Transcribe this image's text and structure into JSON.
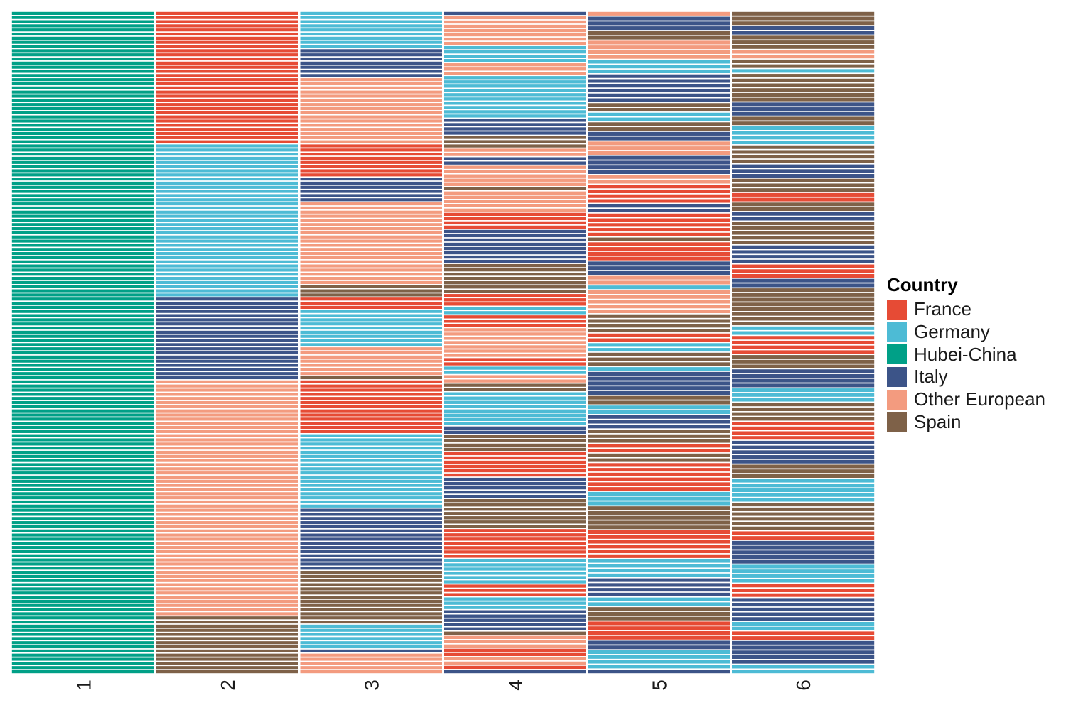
{
  "chart_data": {
    "type": "heatmap",
    "legend_title": "Country",
    "legend_position": "right",
    "grid": false,
    "categories": [
      "France",
      "Germany",
      "Hubei-China",
      "Italy",
      "Other European",
      "Spain"
    ],
    "colors": {
      "France": "#E64B35",
      "Germany": "#4DBBD5",
      "Hubei-China": "#00A087",
      "Italy": "#3C5488",
      "Other European": "#F39B7F",
      "Spain": "#7E6148"
    },
    "x": [
      "1",
      "2",
      "3",
      "4",
      "5",
      "6"
    ],
    "rows_per_column": 160,
    "columns": [
      {
        "label": "1",
        "segments": [
          [
            "Hubei-China",
            160
          ]
        ]
      },
      {
        "label": "2",
        "segments": [
          [
            "France",
            32
          ],
          [
            "Germany",
            37
          ],
          [
            "Italy",
            20
          ],
          [
            "Other European",
            57
          ],
          [
            "Spain",
            14
          ]
        ]
      },
      {
        "label": "3",
        "segments": [
          [
            "Germany",
            9
          ],
          [
            "Italy",
            7
          ],
          [
            "Other European",
            16
          ],
          [
            "France",
            8
          ],
          [
            "Italy",
            6
          ],
          [
            "Other European",
            20
          ],
          [
            "Spain",
            3
          ],
          [
            "France",
            3
          ],
          [
            "Germany",
            9
          ],
          [
            "Other European",
            7
          ],
          [
            "Spain",
            1
          ],
          [
            "France",
            13
          ],
          [
            "Germany",
            18
          ],
          [
            "Italy",
            15
          ],
          [
            "Spain",
            13
          ],
          [
            "Germany",
            6
          ],
          [
            "Italy",
            1
          ],
          [
            "Other European",
            5
          ]
        ]
      },
      {
        "label": "4",
        "segments": [
          [
            "Italy",
            1
          ],
          [
            "Other European",
            7
          ],
          [
            "Germany",
            4
          ],
          [
            "Other European",
            3
          ],
          [
            "Germany",
            10
          ],
          [
            "Italy",
            4
          ],
          [
            "Spain",
            3
          ],
          [
            "Other European",
            2
          ],
          [
            "Italy",
            2
          ],
          [
            "Other European",
            5
          ],
          [
            "Spain",
            1
          ],
          [
            "Other European",
            5
          ],
          [
            "France",
            4
          ],
          [
            "Italy",
            8
          ],
          [
            "Spain",
            7
          ],
          [
            "France",
            3
          ],
          [
            "Germany",
            2
          ],
          [
            "France",
            3
          ],
          [
            "Other European",
            7
          ],
          [
            "France",
            2
          ],
          [
            "Germany",
            2
          ],
          [
            "Other European",
            2
          ],
          [
            "Spain",
            2
          ],
          [
            "Germany",
            8
          ],
          [
            "Italy",
            2
          ],
          [
            "Spain",
            4
          ],
          [
            "France",
            6
          ],
          [
            "Italy",
            5
          ],
          [
            "Spain",
            7
          ],
          [
            "France",
            7
          ],
          [
            "Germany",
            6
          ],
          [
            "France",
            3
          ],
          [
            "Germany",
            3
          ],
          [
            "Italy",
            5
          ],
          [
            "Spain",
            1
          ],
          [
            "Other European",
            3
          ],
          [
            "France",
            2
          ],
          [
            "Other European",
            2
          ],
          [
            "France",
            1
          ],
          [
            "Italy",
            1
          ]
        ]
      },
      {
        "label": "5",
        "segments": [
          [
            "Other European",
            1
          ],
          [
            "Italy",
            3
          ],
          [
            "Spain",
            2
          ],
          [
            "Other European",
            4
          ],
          [
            "Germany",
            3
          ],
          [
            "Italy",
            6
          ],
          [
            "Spain",
            2
          ],
          [
            "Germany",
            2
          ],
          [
            "Spain",
            2
          ],
          [
            "Italy",
            2
          ],
          [
            "Other European",
            3
          ],
          [
            "Italy",
            4
          ],
          [
            "Other European",
            2
          ],
          [
            "France",
            4
          ],
          [
            "Italy",
            2
          ],
          [
            "France",
            5
          ],
          [
            "Spain",
            1
          ],
          [
            "France",
            4
          ],
          [
            "Italy",
            3
          ],
          [
            "Other European",
            2
          ],
          [
            "Germany",
            1
          ],
          [
            "Other European",
            5
          ],
          [
            "Spain",
            4
          ],
          [
            "France",
            2
          ],
          [
            "Germany",
            2
          ],
          [
            "Spain",
            3
          ],
          [
            "Germany",
            1
          ],
          [
            "Italy",
            5
          ],
          [
            "Spain",
            2
          ],
          [
            "Germany",
            2
          ],
          [
            "Italy",
            3
          ],
          [
            "Spain",
            3
          ],
          [
            "France",
            2
          ],
          [
            "Spain",
            2
          ],
          [
            "France",
            6
          ],
          [
            "Germany",
            3
          ],
          [
            "Spain",
            5
          ],
          [
            "France",
            6
          ],
          [
            "Germany",
            4
          ],
          [
            "Italy",
            4
          ],
          [
            "Germany",
            2
          ],
          [
            "Spain",
            3
          ],
          [
            "France",
            4
          ],
          [
            "Italy",
            2
          ],
          [
            "Germany",
            4
          ],
          [
            "Italy",
            1
          ]
        ]
      },
      {
        "label": "6",
        "segments": [
          [
            "Spain",
            3
          ],
          [
            "Italy",
            2
          ],
          [
            "Spain",
            3
          ],
          [
            "Other European",
            2
          ],
          [
            "Spain",
            2
          ],
          [
            "Germany",
            1
          ],
          [
            "Spain",
            6
          ],
          [
            "Italy",
            3
          ],
          [
            "Spain",
            2
          ],
          [
            "Germany",
            4
          ],
          [
            "Spain",
            4
          ],
          [
            "Italy",
            3
          ],
          [
            "Spain",
            3
          ],
          [
            "France",
            2
          ],
          [
            "Spain",
            2
          ],
          [
            "Italy",
            2
          ],
          [
            "Spain",
            5
          ],
          [
            "Italy",
            4
          ],
          [
            "France",
            3
          ],
          [
            "Italy",
            2
          ],
          [
            "Spain",
            8
          ],
          [
            "Germany",
            2
          ],
          [
            "France",
            4
          ],
          [
            "Spain",
            3
          ],
          [
            "Italy",
            4
          ],
          [
            "Germany",
            3
          ],
          [
            "Spain",
            4
          ],
          [
            "France",
            4
          ],
          [
            "Italy",
            5
          ],
          [
            "Spain",
            3
          ],
          [
            "Germany",
            5
          ],
          [
            "Spain",
            6
          ],
          [
            "France",
            2
          ],
          [
            "Italy",
            5
          ],
          [
            "Germany",
            4
          ],
          [
            "France",
            3
          ],
          [
            "Italy",
            5
          ],
          [
            "Germany",
            2
          ],
          [
            "France",
            2
          ],
          [
            "Italy",
            5
          ],
          [
            "Germany",
            2
          ]
        ]
      }
    ]
  }
}
